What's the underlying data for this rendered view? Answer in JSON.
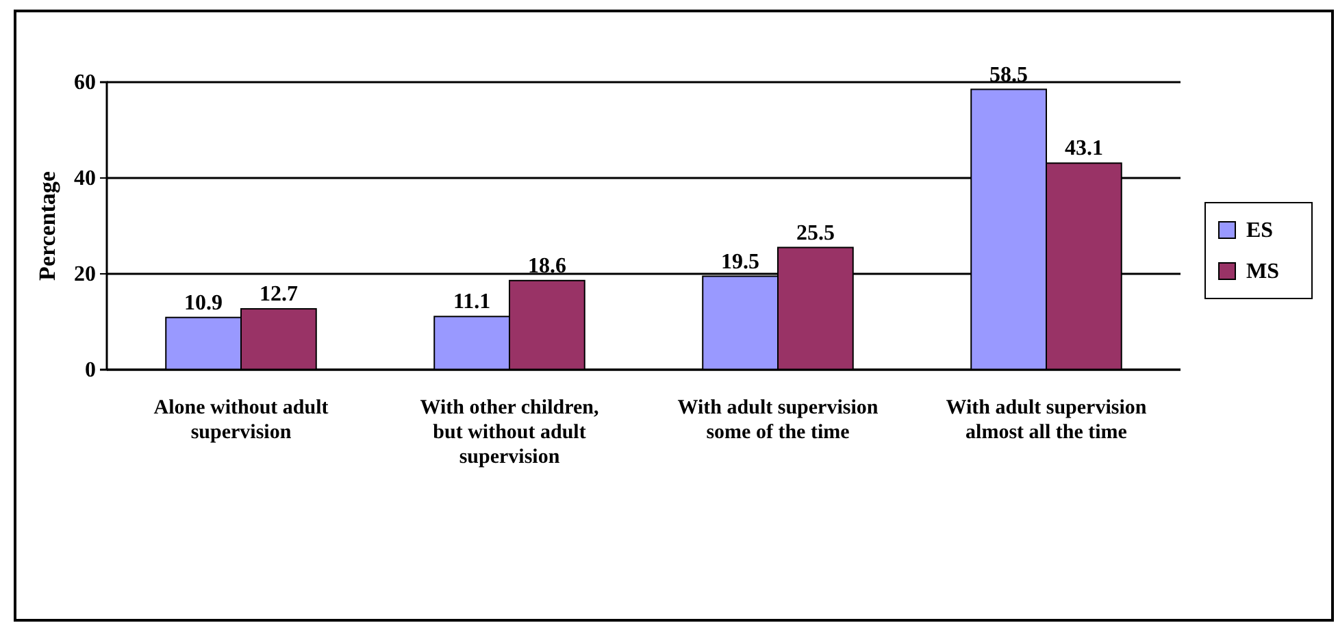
{
  "chart_data": {
    "type": "bar",
    "ylabel": "Percentage",
    "categories": [
      "Alone without adult supervision",
      "With other children, but without adult supervision",
      "With adult supervision some of the time",
      "With adult supervision almost all the time"
    ],
    "series": [
      {
        "name": "ES",
        "color": "#9999ff",
        "values": [
          10.9,
          11.1,
          19.5,
          58.5
        ]
      },
      {
        "name": "MS",
        "color": "#993366",
        "values": [
          12.7,
          18.6,
          25.5,
          43.1
        ]
      }
    ],
    "ylim": [
      0,
      60
    ],
    "yticks": [
      0,
      20,
      40,
      60
    ],
    "grid": "y",
    "legend": "right",
    "data_labels": true
  }
}
